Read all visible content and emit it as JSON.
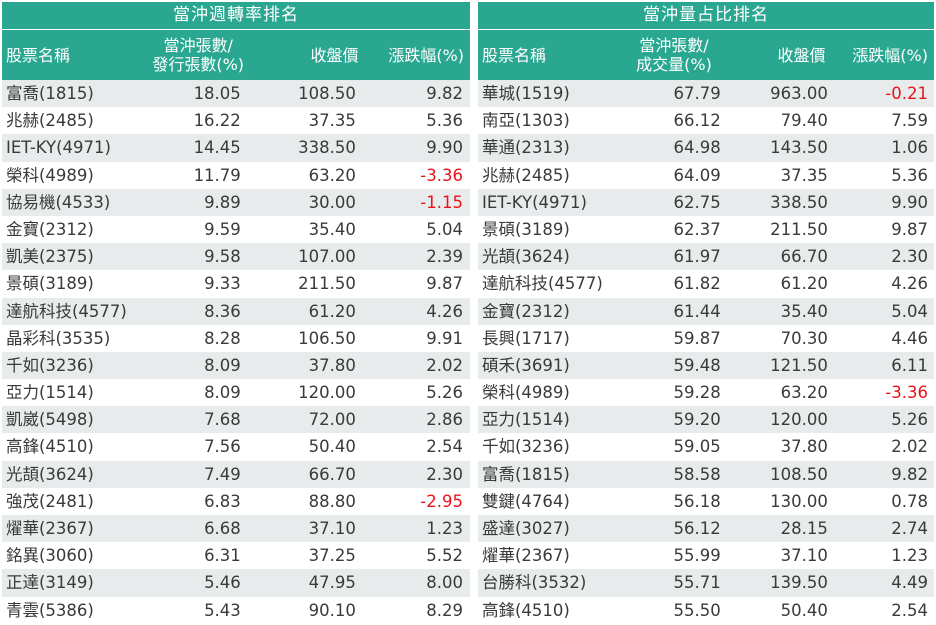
{
  "colors": {
    "header_bg": "#2aa791",
    "odd_row_bg": "#e8ebeb",
    "negative": "#e8141b",
    "text": "#3a3a3a"
  },
  "left_table": {
    "title": "當沖週轉率排名",
    "headers": [
      "股票名稱",
      "當沖張數/\n發行張數(%)",
      "收盤價",
      "漲跌幅(%)"
    ],
    "rows": [
      {
        "name": "富喬(1815)",
        "ratio": "18.05",
        "close": "108.50",
        "change": "9.82"
      },
      {
        "name": "兆赫(2485)",
        "ratio": "16.22",
        "close": "37.35",
        "change": "5.36"
      },
      {
        "name": "IET-KY(4971)",
        "ratio": "14.45",
        "close": "338.50",
        "change": "9.90"
      },
      {
        "name": "榮科(4989)",
        "ratio": "11.79",
        "close": "63.20",
        "change": "-3.36"
      },
      {
        "name": "協易機(4533)",
        "ratio": "9.89",
        "close": "30.00",
        "change": "-1.15"
      },
      {
        "name": "金寶(2312)",
        "ratio": "9.59",
        "close": "35.40",
        "change": "5.04"
      },
      {
        "name": "凱美(2375)",
        "ratio": "9.58",
        "close": "107.00",
        "change": "2.39"
      },
      {
        "name": "景碩(3189)",
        "ratio": "9.33",
        "close": "211.50",
        "change": "9.87"
      },
      {
        "name": "達航科技(4577)",
        "ratio": "8.36",
        "close": "61.20",
        "change": "4.26"
      },
      {
        "name": "晶彩科(3535)",
        "ratio": "8.28",
        "close": "106.50",
        "change": "9.91"
      },
      {
        "name": "千如(3236)",
        "ratio": "8.09",
        "close": "37.80",
        "change": "2.02"
      },
      {
        "name": "亞力(1514)",
        "ratio": "8.09",
        "close": "120.00",
        "change": "5.26"
      },
      {
        "name": "凱崴(5498)",
        "ratio": "7.68",
        "close": "72.00",
        "change": "2.86"
      },
      {
        "name": "高鋒(4510)",
        "ratio": "7.56",
        "close": "50.40",
        "change": "2.54"
      },
      {
        "name": "光頡(3624)",
        "ratio": "7.49",
        "close": "66.70",
        "change": "2.30"
      },
      {
        "name": "強茂(2481)",
        "ratio": "6.83",
        "close": "88.80",
        "change": "-2.95"
      },
      {
        "name": "燿華(2367)",
        "ratio": "6.68",
        "close": "37.10",
        "change": "1.23"
      },
      {
        "name": "銘異(3060)",
        "ratio": "6.31",
        "close": "37.25",
        "change": "5.52"
      },
      {
        "name": "正達(3149)",
        "ratio": "5.46",
        "close": "47.95",
        "change": "8.00"
      },
      {
        "name": "青雲(5386)",
        "ratio": "5.43",
        "close": "90.10",
        "change": "8.29"
      }
    ]
  },
  "right_table": {
    "title": "當沖量占比排名",
    "headers": [
      "股票名稱",
      "當沖張數/\n成交量(%)",
      "收盤價",
      "漲跌幅(%)"
    ],
    "rows": [
      {
        "name": "華城(1519)",
        "ratio": "67.79",
        "close": "963.00",
        "change": "-0.21"
      },
      {
        "name": "南亞(1303)",
        "ratio": "66.12",
        "close": "79.40",
        "change": "7.59"
      },
      {
        "name": "華通(2313)",
        "ratio": "64.98",
        "close": "143.50",
        "change": "1.06"
      },
      {
        "name": "兆赫(2485)",
        "ratio": "64.09",
        "close": "37.35",
        "change": "5.36"
      },
      {
        "name": "IET-KY(4971)",
        "ratio": "62.75",
        "close": "338.50",
        "change": "9.90"
      },
      {
        "name": "景碩(3189)",
        "ratio": "62.37",
        "close": "211.50",
        "change": "9.87"
      },
      {
        "name": "光頡(3624)",
        "ratio": "61.97",
        "close": "66.70",
        "change": "2.30"
      },
      {
        "name": "達航科技(4577)",
        "ratio": "61.82",
        "close": "61.20",
        "change": "4.26"
      },
      {
        "name": "金寶(2312)",
        "ratio": "61.44",
        "close": "35.40",
        "change": "5.04"
      },
      {
        "name": "長興(1717)",
        "ratio": "59.87",
        "close": "70.30",
        "change": "4.46"
      },
      {
        "name": "碩禾(3691)",
        "ratio": "59.48",
        "close": "121.50",
        "change": "6.11"
      },
      {
        "name": "榮科(4989)",
        "ratio": "59.28",
        "close": "63.20",
        "change": "-3.36"
      },
      {
        "name": "亞力(1514)",
        "ratio": "59.20",
        "close": "120.00",
        "change": "5.26"
      },
      {
        "name": "千如(3236)",
        "ratio": "59.05",
        "close": "37.80",
        "change": "2.02"
      },
      {
        "name": "富喬(1815)",
        "ratio": "58.58",
        "close": "108.50",
        "change": "9.82"
      },
      {
        "name": "雙鍵(4764)",
        "ratio": "56.18",
        "close": "130.00",
        "change": "0.78"
      },
      {
        "name": "盛達(3027)",
        "ratio": "56.12",
        "close": "28.15",
        "change": "2.74"
      },
      {
        "name": "燿華(2367)",
        "ratio": "55.99",
        "close": "37.10",
        "change": "1.23"
      },
      {
        "name": "台勝科(3532)",
        "ratio": "55.71",
        "close": "139.50",
        "change": "4.49"
      },
      {
        "name": "高鋒(4510)",
        "ratio": "55.50",
        "close": "50.40",
        "change": "2.54"
      }
    ]
  }
}
